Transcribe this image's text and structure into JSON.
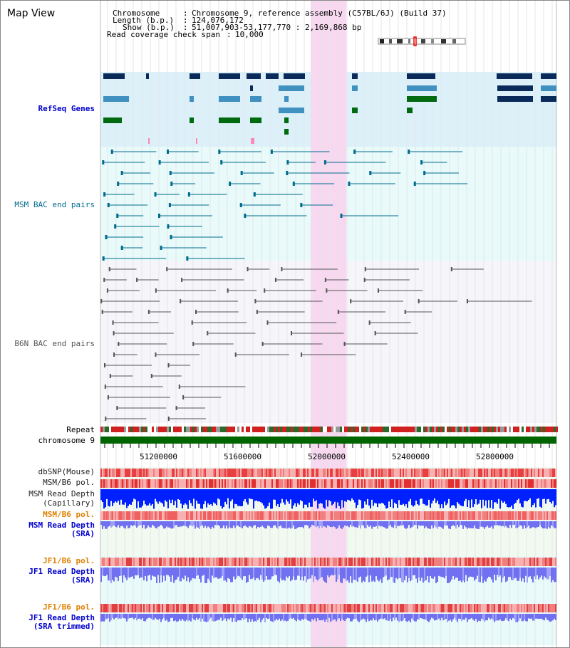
{
  "header": {
    "title": "Map View",
    "chromosome_label": "Chromosome",
    "chromosome_value": "Chromosome 9, reference assembly (C57BL/6J) (Build 37)",
    "length_label": "Length (b.p.)",
    "length_value": "124,076,172",
    "show_label": "Show (b.p.)",
    "show_value": "51,007,903-53,177,770 : 2,169,868 bp",
    "coverage_label": "Read coverage check span",
    "coverage_value": "10,000"
  },
  "tracks": {
    "refseq": "RefSeq Genes",
    "msm_bac": "MSM BAC end pairs",
    "b6n_bac": "B6N BAC end pairs",
    "repeat": "Repeat",
    "chromosome": "chromosome 9",
    "dbsnp": "dbSNP(Mouse)",
    "msm_b6_pol": "MSM/B6 pol.",
    "msm_read_depth_cap_1": "MSM Read Depth",
    "msm_read_depth_cap_2": "(Capillary)",
    "msm_b6_pol_2": "MSM/B6 pol.",
    "msm_read_depth_sra_1": "MSM Read Depth",
    "msm_read_depth_sra_2": "(SRA)",
    "jf1_b6_pol": "JF1/B6 pol.",
    "jf1_read_depth_sra_1": "JF1 Read Depth",
    "jf1_read_depth_sra_2": "(SRA)",
    "jf1_b6_pol_2": "JF1/B6 pol.",
    "jf1_read_depth_trim_1": "JF1 Read Depth",
    "jf1_read_depth_trim_2": "(SRA trimmed)"
  },
  "axis": {
    "ticks": [
      "51200000",
      "51600000",
      "52000000",
      "52400000",
      "52800000"
    ]
  },
  "colors": {
    "refseq_bg": "#dcf0fa",
    "highlight": "#f8d8f0",
    "dark_gene": "#0a2a5a",
    "mid_gene": "#4090c0",
    "green_gene": "#006a10",
    "msm_line": "#006b8f",
    "b6n_line": "#555555",
    "chromosome": "#006400",
    "pol": "#e05050",
    "depth_blue": "#0020ff",
    "depth_light": "#7070f0"
  }
}
